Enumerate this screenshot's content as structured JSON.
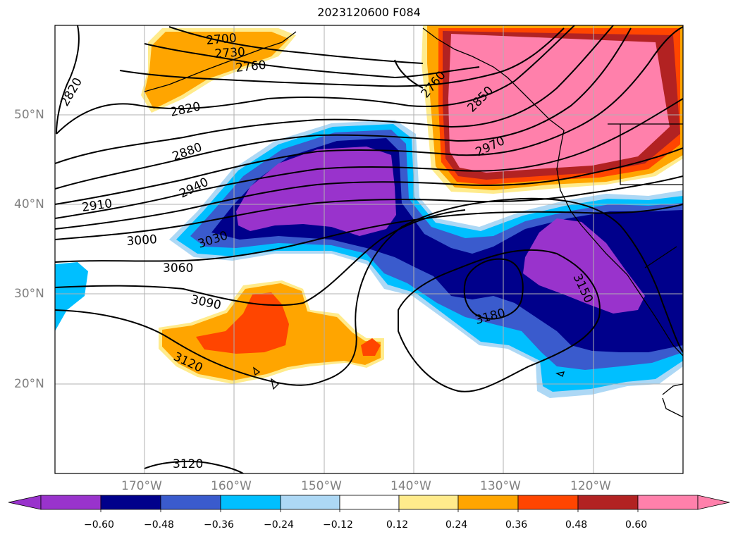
{
  "title": "2023120600 F084",
  "lat_labels": [
    "50°N",
    "40°N",
    "30°N",
    "20°N"
  ],
  "lon_labels": [
    "170°W",
    "160°W",
    "150°W",
    "140°W",
    "130°W",
    "120°W"
  ],
  "contour_labels": [
    "2700",
    "2730",
    "2760",
    "2820",
    "2820",
    "2880",
    "2910",
    "2940",
    "3000",
    "3030",
    "3060",
    "3090",
    "3120",
    "3120",
    "2760",
    "2850",
    "2970",
    "3150",
    "3180"
  ],
  "colorbar": {
    "ticks": [
      "−0.60",
      "−0.48",
      "−0.36",
      "−0.24",
      "−0.12",
      "0.12",
      "0.24",
      "0.36",
      "0.48",
      "0.60"
    ],
    "colors": [
      "#9933cc",
      "#00008b",
      "#3a5bcd",
      "#00bfff",
      "#add8f5",
      "#ffffff",
      "#ffeb8c",
      "#ffa500",
      "#ff4500",
      "#b22222",
      "#ff80ab"
    ]
  }
}
